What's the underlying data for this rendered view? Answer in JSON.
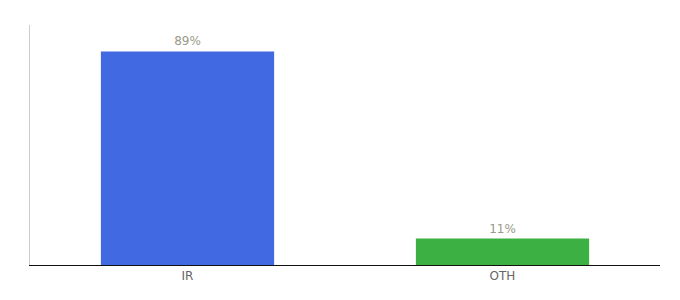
{
  "chart_data": {
    "type": "bar",
    "categories": [
      "IR",
      "OTH"
    ],
    "values": [
      89,
      11
    ],
    "value_labels": [
      "89%",
      "11%"
    ],
    "colors": [
      "#4169e1",
      "#3cb043"
    ],
    "ylim": [
      0,
      100
    ],
    "data_labels": true,
    "tick_labels": "x",
    "grid": false
  }
}
